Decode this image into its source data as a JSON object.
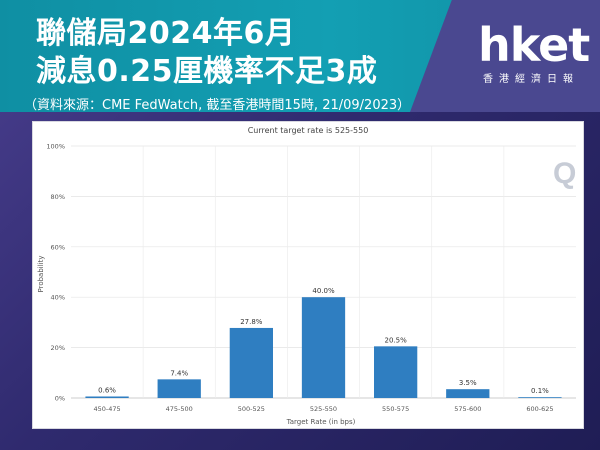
{
  "header": {
    "title_line1": "聯儲局2024年6月",
    "title_line2": "減息0.25厘機率不足3成",
    "source": "（資料來源：CME FedWatch, 截至香港時間15時, 21/09/2023）",
    "logo": "hket",
    "logo_sub": "香港經濟日報"
  },
  "watermark": "Q",
  "chart_data": {
    "type": "bar",
    "title": "Current target rate is 525-550",
    "xlabel": "Target Rate (in bps)",
    "ylabel": "Probability",
    "categories": [
      "450-475",
      "475-500",
      "500-525",
      "525-550",
      "550-575",
      "575-600",
      "600-625"
    ],
    "values": [
      0.6,
      7.4,
      27.8,
      40.0,
      20.5,
      3.5,
      0.1
    ],
    "value_labels": [
      "0.6%",
      "7.4%",
      "27.8%",
      "40.0%",
      "20.5%",
      "3.5%",
      "0.1%"
    ],
    "ylim": [
      0,
      100
    ],
    "yticks": [
      0,
      20,
      40,
      60,
      80,
      100
    ],
    "ytick_labels": [
      "0%",
      "20%",
      "40%",
      "60%",
      "80%",
      "100%"
    ],
    "grid": true,
    "bar_color": "#2f7ec1"
  }
}
